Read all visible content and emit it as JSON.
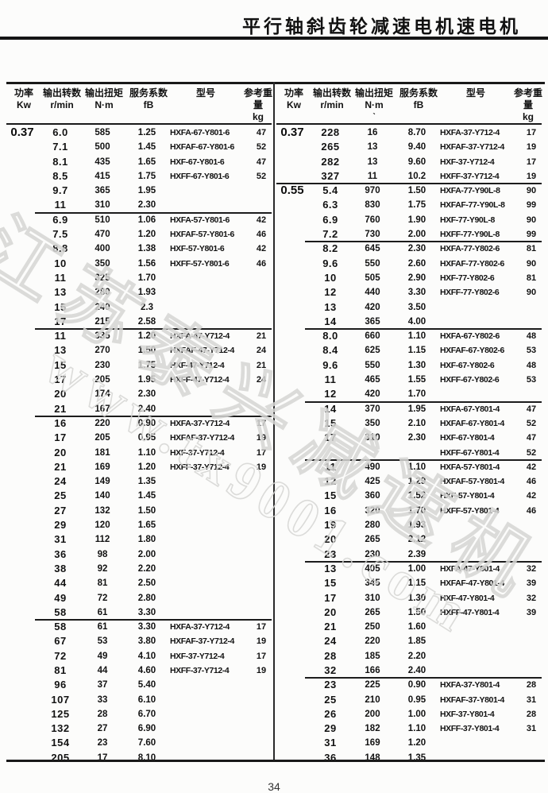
{
  "page": {
    "title": "平行轴斜齿轮减速电机速电机",
    "page_number": "34"
  },
  "columns": [
    {
      "cn": "功率",
      "unit": "Kw"
    },
    {
      "cn": "输出转数",
      "unit": "r/min"
    },
    {
      "cn": "输出扭矩",
      "unit": "N·m"
    },
    {
      "cn": "服务系数",
      "unit": "fB"
    },
    {
      "cn": "型号",
      "unit": ""
    },
    {
      "cn": "参考重量",
      "unit": "kg"
    }
  ],
  "right_torque_tick": "ˋ",
  "watermark": {
    "line1": "江苏泰兴减速机",
    "line2": "www.tx9001.com"
  },
  "colors": {
    "ink": "#161616",
    "rule": "#191919",
    "watermark": "#d6d6d4"
  },
  "tables": [
    {
      "side": "left",
      "sections": [
        {
          "power": "0.37",
          "rows": [
            [
              "6.0",
              "585",
              "1.25",
              "HXFA-67-Y801-6",
              "47"
            ],
            [
              "7.1",
              "500",
              "1.45",
              "HXFAF-67-Y801-6",
              "52"
            ],
            [
              "8.1",
              "435",
              "1.65",
              "HXF-67-Y801-6",
              "47"
            ],
            [
              "8.5",
              "415",
              "1.75",
              "HXFF-67-Y801-6",
              "52"
            ],
            [
              "9.7",
              "365",
              "1.95",
              "",
              ""
            ],
            [
              "11",
              "310",
              "2.30",
              "",
              ""
            ]
          ]
        },
        {
          "power": null,
          "rows": [
            [
              "6.9",
              "510",
              "1.06",
              "HXFA-57-Y801-6",
              "42"
            ],
            [
              "7.5",
              "470",
              "1.20",
              "HXFAF-57-Y801-6",
              "46"
            ],
            [
              "8.8",
              "400",
              "1.38",
              "HXF-57-Y801-6",
              "42"
            ],
            [
              "10",
              "350",
              "1.56",
              "HXFF-57-Y801-6",
              "46"
            ],
            [
              "11",
              "325",
              "1.70",
              "",
              ""
            ],
            [
              "13",
              "280",
              "1.93",
              "",
              ""
            ],
            [
              "15",
              "240",
              "2.3",
              "",
              ""
            ],
            [
              "17",
              "215",
              "2.58",
              "",
              ""
            ]
          ]
        },
        {
          "power": null,
          "rows": [
            [
              "11",
              "335",
              "1.20",
              "HXFA-47-Y712-4",
              "21"
            ],
            [
              "13",
              "270",
              "1.50",
              "HXFAF-47-Y712-4",
              "24"
            ],
            [
              "15",
              "230",
              "1.75",
              "HXF-47-Y712-4",
              "21"
            ],
            [
              "17",
              "205",
              "1.95",
              "HXFF-47-Y712-4",
              "24"
            ],
            [
              "20",
              "174",
              "2.30",
              "",
              ""
            ],
            [
              "21",
              "167",
              "2.40",
              "",
              ""
            ]
          ]
        },
        {
          "power": null,
          "rows": [
            [
              "16",
              "220",
              "0.90",
              "HXFA-37-Y712-4",
              "17"
            ],
            [
              "17",
              "205",
              "0.95",
              "HXFAF-37-Y712-4",
              "19"
            ],
            [
              "20",
              "181",
              "1.10",
              "HXF-37-Y712-4",
              "17"
            ],
            [
              "21",
              "169",
              "1.20",
              "HXFF-37-Y712-4",
              "19"
            ],
            [
              "24",
              "149",
              "1.35",
              "",
              ""
            ],
            [
              "25",
              "140",
              "1.45",
              "",
              ""
            ],
            [
              "27",
              "132",
              "1.50",
              "",
              ""
            ],
            [
              "29",
              "120",
              "1.65",
              "",
              ""
            ],
            [
              "31",
              "112",
              "1.80",
              "",
              ""
            ],
            [
              "36",
              "98",
              "2.00",
              "",
              ""
            ],
            [
              "38",
              "92",
              "2.20",
              "",
              ""
            ],
            [
              "44",
              "81",
              "2.50",
              "",
              ""
            ],
            [
              "49",
              "72",
              "2.80",
              "",
              ""
            ],
            [
              "58",
              "61",
              "3.30",
              "",
              ""
            ]
          ]
        },
        {
          "power": null,
          "rows": [
            [
              "58",
              "61",
              "3.30",
              "HXFA-37-Y712-4",
              "17"
            ],
            [
              "67",
              "53",
              "3.80",
              "HXFAF-37-Y712-4",
              "19"
            ],
            [
              "72",
              "49",
              "4.10",
              "HXF-37-Y712-4",
              "17"
            ],
            [
              "81",
              "44",
              "4.60",
              "HXFF-37-Y712-4",
              "19"
            ],
            [
              "96",
              "37",
              "5.40",
              "",
              ""
            ],
            [
              "107",
              "33",
              "6.10",
              "",
              ""
            ],
            [
              "125",
              "28",
              "6.70",
              "",
              ""
            ],
            [
              "132",
              "27",
              "6.90",
              "",
              ""
            ],
            [
              "154",
              "23",
              "7.60",
              "",
              ""
            ],
            [
              "205",
              "17",
              "8.10",
              "",
              ""
            ]
          ]
        }
      ]
    },
    {
      "side": "right",
      "sections": [
        {
          "power": "0.37",
          "rows": [
            [
              "228",
              "16",
              "8.70",
              "HXFA-37-Y712-4",
              "17"
            ],
            [
              "265",
              "13",
              "9.40",
              "HXFAF-37-Y712-4",
              "19"
            ],
            [
              "282",
              "13",
              "9.60",
              "HXF-37-Y712-4",
              "17"
            ],
            [
              "327",
              "11",
              "10.2",
              "HXFF-37-Y712-4",
              "19"
            ]
          ]
        },
        {
          "power": "0.55",
          "rows": [
            [
              "5.4",
              "970",
              "1.50",
              "HXFA-77-Y90L-8",
              "90"
            ],
            [
              "6.3",
              "830",
              "1.75",
              "HXFAF-77-Y90L-8",
              "99"
            ],
            [
              "6.9",
              "760",
              "1.90",
              "HXF-77-Y90L-8",
              "90"
            ],
            [
              "7.2",
              "730",
              "2.00",
              "HXFF-77-Y90L-8",
              "99"
            ]
          ]
        },
        {
          "power": null,
          "rows": [
            [
              "8.2",
              "645",
              "2.30",
              "HXFA-77-Y802-6",
              "81"
            ],
            [
              "9.6",
              "550",
              "2.60",
              "HXFAF-77-Y802-6",
              "90"
            ],
            [
              "10",
              "505",
              "2.90",
              "HXF-77-Y802-6",
              "81"
            ],
            [
              "12",
              "440",
              "3.30",
              "HXFF-77-Y802-6",
              "90"
            ],
            [
              "13",
              "420",
              "3.50",
              "",
              ""
            ],
            [
              "14",
              "365",
              "4.00",
              "",
              ""
            ]
          ]
        },
        {
          "power": null,
          "rows": [
            [
              "8.0",
              "660",
              "1.10",
              "HXFA-67-Y802-6",
              "48"
            ],
            [
              "8.4",
              "625",
              "1.15",
              "HXFAF-67-Y802-6",
              "53"
            ],
            [
              "9.6",
              "550",
              "1.30",
              "HXF-67-Y802-6",
              "48"
            ],
            [
              "11",
              "465",
              "1.55",
              "HXFF-67-Y802-6",
              "53"
            ],
            [
              "12",
              "420",
              "1.70",
              "",
              ""
            ]
          ]
        },
        {
          "power": null,
          "rows": [
            [
              "14",
              "370",
              "1.95",
              "HXFA-67-Y801-4",
              "47"
            ],
            [
              "15",
              "350",
              "2.10",
              "HXFAF-67-Y801-4",
              "52"
            ],
            [
              "17",
              "310",
              "2.30",
              "HXF-67-Y801-4",
              "47"
            ],
            [
              "",
              "",
              "",
              "HXFF-67-Y801-4",
              "52"
            ]
          ]
        },
        {
          "power": null,
          "rows": [
            [
              "11",
              "490",
              "1.10",
              "HXFA-57-Y801-4",
              "42"
            ],
            [
              "12",
              "425",
              "1.29",
              "HXFAF-57-Y801-4",
              "46"
            ],
            [
              "15",
              "360",
              "1.52",
              "HXF-57-Y801-4",
              "42"
            ],
            [
              "16",
              "320",
              "1.70",
              "HXFF-57-Y801-4",
              "46"
            ],
            [
              "19",
              "280",
              "1.93",
              "",
              ""
            ],
            [
              "20",
              "265",
              "2.12",
              "",
              ""
            ],
            [
              "23",
              "230",
              "2.39",
              "",
              ""
            ]
          ]
        },
        {
          "power": null,
          "rows": [
            [
              "13",
              "405",
              "1.00",
              "HXFA-47-Y801-4",
              "32"
            ],
            [
              "15",
              "345",
              "1.15",
              "HXFAF-47-Y801-4",
              "39"
            ],
            [
              "17",
              "310",
              "1.30",
              "HXF-47-Y801-4",
              "32"
            ],
            [
              "20",
              "265",
              "1.50",
              "HXFF-47-Y801-4",
              "39"
            ],
            [
              "21",
              "250",
              "1.60",
              "",
              ""
            ],
            [
              "24",
              "220",
              "1.85",
              "",
              ""
            ],
            [
              "28",
              "185",
              "2.20",
              "",
              ""
            ],
            [
              "32",
              "166",
              "2.40",
              "",
              ""
            ]
          ]
        },
        {
          "power": null,
          "rows": [
            [
              "23",
              "225",
              "0.90",
              "HXFA-37-Y801-4",
              "28"
            ],
            [
              "25",
              "210",
              "0.95",
              "HXFAF-37-Y801-4",
              "31"
            ],
            [
              "26",
              "200",
              "1.00",
              "HXF-37-Y801-4",
              "28"
            ],
            [
              "29",
              "182",
              "1.10",
              "HXFF-37-Y801-4",
              "31"
            ],
            [
              "31",
              "169",
              "1.20",
              "",
              ""
            ],
            [
              "36",
              "148",
              "1.35",
              "",
              ""
            ]
          ]
        }
      ]
    }
  ]
}
